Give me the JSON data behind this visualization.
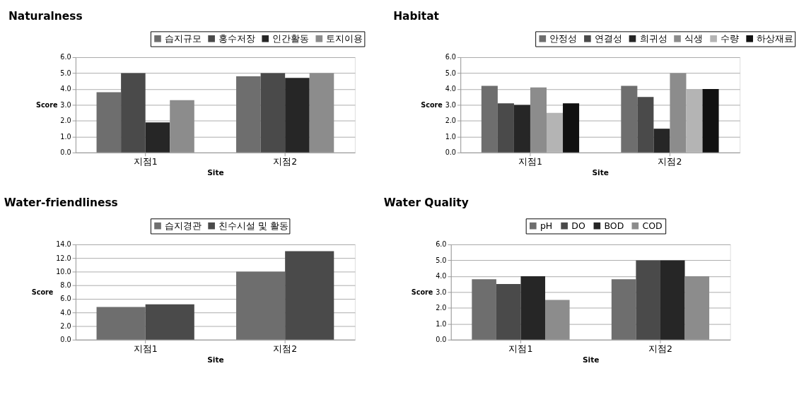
{
  "chart_data": [
    {
      "type": "bar",
      "title": "Naturalness",
      "xlabel": "Site",
      "ylabel": "Score",
      "categories": [
        "지점1",
        "지점2"
      ],
      "legend": "top",
      "grid": "y",
      "ylim": [
        0,
        6
      ],
      "yticks": [
        {
          "value": 0,
          "label": "0.0"
        },
        {
          "value": 1,
          "label": "1.0"
        },
        {
          "value": 2,
          "label": "2.0"
        },
        {
          "value": 3,
          "label": "3.0"
        },
        {
          "value": 4,
          "label": "4.0"
        },
        {
          "value": 5,
          "label": "5.0"
        },
        {
          "value": 6,
          "label": "6.0"
        }
      ],
      "series": [
        {
          "name": "습지규모",
          "color": "#6e6e6e",
          "values": [
            3.8,
            4.8
          ]
        },
        {
          "name": "홍수저장",
          "color": "#4a4a4a",
          "values": [
            5.0,
            5.0
          ]
        },
        {
          "name": "인간활동",
          "color": "#262626",
          "values": [
            1.9,
            4.7
          ]
        },
        {
          "name": "토지이용",
          "color": "#8c8c8c",
          "values": [
            3.3,
            5.0
          ]
        }
      ]
    },
    {
      "type": "bar",
      "title": "Habitat",
      "xlabel": "Site",
      "ylabel": "Score",
      "categories": [
        "지점1",
        "지점2"
      ],
      "legend": "top",
      "grid": "y",
      "ylim": [
        0,
        6
      ],
      "yticks": [
        {
          "value": 0,
          "label": "0.0"
        },
        {
          "value": 1,
          "label": "1.0"
        },
        {
          "value": 2,
          "label": "2.0"
        },
        {
          "value": 3,
          "label": "3.0"
        },
        {
          "value": 4,
          "label": "4.0"
        },
        {
          "value": 5,
          "label": "5.0"
        },
        {
          "value": 6,
          "label": "6.0"
        }
      ],
      "series": [
        {
          "name": "안정성",
          "color": "#6e6e6e",
          "values": [
            4.2,
            4.2
          ]
        },
        {
          "name": "연결성",
          "color": "#4a4a4a",
          "values": [
            3.1,
            3.5
          ]
        },
        {
          "name": "희귀성",
          "color": "#262626",
          "values": [
            3.0,
            1.5
          ]
        },
        {
          "name": "식생",
          "color": "#8c8c8c",
          "values": [
            4.1,
            5.0
          ]
        },
        {
          "name": "수량",
          "color": "#b4b4b4",
          "values": [
            2.5,
            4.0
          ]
        },
        {
          "name": "하상재료",
          "color": "#111111",
          "values": [
            3.1,
            4.0
          ]
        }
      ]
    },
    {
      "type": "bar",
      "title": "Water-friendliness",
      "xlabel": "Site",
      "ylabel": "Score",
      "categories": [
        "지점1",
        "지점2"
      ],
      "legend": "top",
      "grid": "y",
      "ylim": [
        0,
        14
      ],
      "yticks": [
        {
          "value": 0,
          "label": "0.0"
        },
        {
          "value": 2,
          "label": "2.0"
        },
        {
          "value": 4,
          "label": "4.0"
        },
        {
          "value": 6,
          "label": "6.0"
        },
        {
          "value": 8,
          "label": "8.0"
        },
        {
          "value": 10,
          "label": "10.0"
        },
        {
          "value": 12,
          "label": "12.0"
        },
        {
          "value": 14,
          "label": "14.0"
        }
      ],
      "series": [
        {
          "name": "습지경관",
          "color": "#6e6e6e",
          "values": [
            4.8,
            10.0
          ]
        },
        {
          "name": "친수시설 및 활동",
          "color": "#4a4a4a",
          "values": [
            5.2,
            13.0
          ]
        }
      ]
    },
    {
      "type": "bar",
      "title": "Water Quality",
      "xlabel": "Site",
      "ylabel": "Score",
      "categories": [
        "지점1",
        "지점2"
      ],
      "legend": "top",
      "grid": "y",
      "ylim": [
        0,
        6
      ],
      "yticks": [
        {
          "value": 0,
          "label": "0.0"
        },
        {
          "value": 1,
          "label": "1.0"
        },
        {
          "value": 2,
          "label": "2.0"
        },
        {
          "value": 3,
          "label": "3.0"
        },
        {
          "value": 4,
          "label": "4.0"
        },
        {
          "value": 5,
          "label": "5.0"
        },
        {
          "value": 6,
          "label": "6.0"
        }
      ],
      "series": [
        {
          "name": "pH",
          "color": "#6e6e6e",
          "values": [
            3.8,
            3.8
          ]
        },
        {
          "name": "DO",
          "color": "#4a4a4a",
          "values": [
            3.5,
            5.0
          ]
        },
        {
          "name": "BOD",
          "color": "#262626",
          "values": [
            4.0,
            5.0
          ]
        },
        {
          "name": "COD",
          "color": "#8c8c8c",
          "values": [
            2.5,
            4.0
          ]
        }
      ]
    }
  ]
}
